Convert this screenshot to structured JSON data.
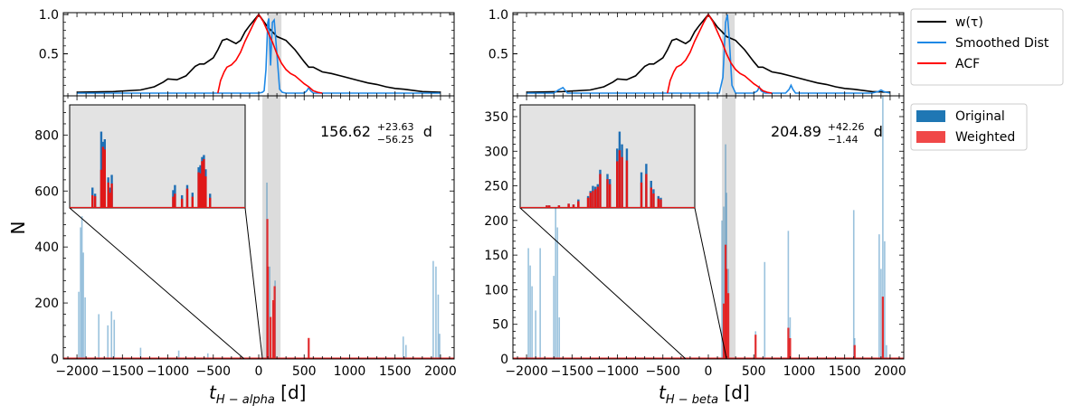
{
  "chart_data": [
    {
      "type": "line",
      "panel": "top-left",
      "ylim": [
        0,
        1.0
      ],
      "yticks": [
        "1.0",
        "0.5"
      ],
      "series": [
        {
          "name": "w(τ)",
          "color": "#000000",
          "x": [
            -2000,
            -1600,
            -1300,
            -1150,
            -1050,
            -1000,
            -900,
            -800,
            -700,
            -650,
            -600,
            -500,
            -450,
            -400,
            -350,
            -300,
            -250,
            -200,
            -150,
            -100,
            -50,
            0,
            50,
            100,
            150,
            200,
            300,
            400,
            500,
            550,
            600,
            700,
            800,
            900,
            1000,
            1100,
            1200,
            1300,
            1400,
            1500,
            1600,
            1800,
            2000
          ],
          "y": [
            0.01,
            0.02,
            0.04,
            0.08,
            0.14,
            0.18,
            0.17,
            0.22,
            0.34,
            0.37,
            0.37,
            0.45,
            0.55,
            0.67,
            0.69,
            0.66,
            0.63,
            0.67,
            0.78,
            0.86,
            0.93,
            1.0,
            0.92,
            0.84,
            0.78,
            0.72,
            0.67,
            0.55,
            0.4,
            0.33,
            0.33,
            0.27,
            0.25,
            0.22,
            0.19,
            0.16,
            0.13,
            0.11,
            0.08,
            0.06,
            0.05,
            0.02,
            0.01
          ]
        },
        {
          "name": "Smoothed Dist",
          "color": "#1e88e5",
          "x": [
            -2000,
            -100,
            0,
            40,
            60,
            80,
            100,
            110,
            130,
            150,
            170,
            200,
            230,
            260,
            300,
            500,
            530,
            550,
            570,
            600,
            2000
          ],
          "y": [
            0,
            0,
            0,
            0.01,
            0.03,
            0.3,
            0.9,
            0.95,
            0.35,
            0.9,
            0.93,
            0.5,
            0.05,
            0.01,
            0,
            0,
            0.03,
            0.07,
            0.03,
            0,
            0
          ],
          "x_right_extra": []
        },
        {
          "name": "ACF",
          "color": "#ff0000",
          "x": [
            -450,
            -420,
            -380,
            -350,
            -300,
            -250,
            -200,
            -150,
            -100,
            -50,
            0,
            50,
            100,
            150,
            200,
            250,
            300,
            350,
            400,
            450,
            500,
            550,
            600,
            650,
            700
          ],
          "y": [
            0,
            0.16,
            0.27,
            0.33,
            0.36,
            0.42,
            0.52,
            0.66,
            0.78,
            0.9,
            1.0,
            0.91,
            0.78,
            0.65,
            0.5,
            0.38,
            0.3,
            0.25,
            0.22,
            0.17,
            0.12,
            0.08,
            0.03,
            0.01,
            0
          ]
        }
      ],
      "shade": [
        100,
        250
      ]
    },
    {
      "type": "bar",
      "panel": "bottom-left",
      "xlabel": "t_{H-alpha} [d]",
      "xlabel_main": "t",
      "xlabel_sub": "H − alpha",
      "xlabel_unit": "[d]",
      "ylabel": "N",
      "xlim": [
        -2150,
        2150
      ],
      "ylim": [
        0,
        940
      ],
      "xticks": [
        -2000,
        -1500,
        -1000,
        -500,
        0,
        500,
        1000,
        1500,
        2000
      ],
      "xticklabels": [
        "−2000",
        "−1500",
        "−1000",
        "−500",
        "0",
        "500",
        "1000",
        "1500",
        "2000"
      ],
      "yticks": [
        0,
        200,
        400,
        600,
        800
      ],
      "annotation": {
        "value": "156.62",
        "sup": "+23.63",
        "sub": "−56.25",
        "unit": "d"
      },
      "shade": [
        40,
        240
      ],
      "original": [
        [
          -1980,
          240
        ],
        [
          -1960,
          470
        ],
        [
          -1945,
          510
        ],
        [
          -1930,
          380
        ],
        [
          -1910,
          220
        ],
        [
          -1760,
          160
        ],
        [
          -1660,
          120
        ],
        [
          -1620,
          170
        ],
        [
          -1590,
          140
        ],
        [
          -1300,
          40
        ],
        [
          -880,
          30
        ],
        [
          -560,
          20
        ],
        [
          90,
          630
        ],
        [
          120,
          330
        ],
        [
          160,
          200
        ],
        [
          180,
          280
        ],
        [
          550,
          70
        ],
        [
          1590,
          80
        ],
        [
          1620,
          50
        ],
        [
          1920,
          350
        ],
        [
          1950,
          330
        ],
        [
          1975,
          230
        ],
        [
          1990,
          90
        ]
      ],
      "weighted": [
        [
          95,
          500
        ],
        [
          100,
          330
        ],
        [
          130,
          150
        ],
        [
          160,
          210
        ],
        [
          175,
          260
        ],
        [
          550,
          75
        ]
      ],
      "inset": {
        "xlim": [
          60,
          260
        ],
        "original": [
          [
            86,
            40
          ],
          [
            89,
            28
          ],
          [
            96,
            150
          ],
          [
            98,
            130
          ],
          [
            100,
            135
          ],
          [
            104,
            60
          ],
          [
            106,
            40
          ],
          [
            108,
            65
          ],
          [
            178,
            35
          ],
          [
            180,
            45
          ],
          [
            188,
            25
          ],
          [
            194,
            45
          ],
          [
            200,
            30
          ],
          [
            207,
            80
          ],
          [
            209,
            84
          ],
          [
            211,
            100
          ],
          [
            212,
            86
          ],
          [
            213,
            104
          ],
          [
            215,
            76
          ],
          [
            220,
            28
          ]
        ],
        "weighted": [
          [
            86,
            25
          ],
          [
            89,
            23
          ],
          [
            96,
            75
          ],
          [
            98,
            120
          ],
          [
            100,
            115
          ],
          [
            104,
            50
          ],
          [
            106,
            30
          ],
          [
            108,
            48
          ],
          [
            178,
            22
          ],
          [
            180,
            28
          ],
          [
            188,
            18
          ],
          [
            194,
            38
          ],
          [
            200,
            22
          ],
          [
            207,
            70
          ],
          [
            209,
            68
          ],
          [
            211,
            92
          ],
          [
            212,
            74
          ],
          [
            213,
            96
          ],
          [
            215,
            62
          ],
          [
            220,
            20
          ]
        ]
      }
    },
    {
      "type": "line",
      "panel": "top-right",
      "ylim": [
        0,
        1.0
      ],
      "yticks": [
        "1.0",
        "0.5"
      ],
      "series": [
        {
          "name": "w(τ)",
          "color": "#000000",
          "x": [
            -2000,
            -1600,
            -1300,
            -1150,
            -1050,
            -1000,
            -900,
            -800,
            -700,
            -650,
            -600,
            -500,
            -450,
            -400,
            -350,
            -300,
            -250,
            -200,
            -150,
            -100,
            -50,
            0,
            50,
            100,
            150,
            200,
            300,
            400,
            500,
            550,
            600,
            700,
            800,
            900,
            1000,
            1100,
            1200,
            1300,
            1400,
            1500,
            1600,
            1800,
            2000
          ],
          "y": [
            0.01,
            0.02,
            0.04,
            0.08,
            0.14,
            0.18,
            0.17,
            0.22,
            0.34,
            0.37,
            0.37,
            0.45,
            0.55,
            0.67,
            0.69,
            0.66,
            0.63,
            0.67,
            0.78,
            0.86,
            0.93,
            1.0,
            0.92,
            0.84,
            0.78,
            0.72,
            0.67,
            0.55,
            0.4,
            0.33,
            0.33,
            0.27,
            0.25,
            0.22,
            0.19,
            0.16,
            0.13,
            0.11,
            0.08,
            0.06,
            0.05,
            0.02,
            0.01
          ]
        },
        {
          "name": "Smoothed Dist",
          "color": "#1e88e5",
          "x": [
            -2000,
            -1700,
            -1650,
            -1600,
            -1550,
            0,
            120,
            160,
            190,
            210,
            230,
            260,
            300,
            500,
            540,
            560,
            580,
            620,
            850,
            890,
            910,
            930,
            960,
            1800,
            1870,
            1900,
            1930,
            2000
          ],
          "y": [
            0,
            0,
            0.04,
            0.07,
            0,
            0,
            0,
            0.2,
            0.9,
            1.0,
            0.7,
            0.1,
            0,
            0,
            0.03,
            0.08,
            0.03,
            0,
            0,
            0.05,
            0.1,
            0.05,
            0,
            0,
            0.02,
            0.04,
            0.02,
            0
          ]
        },
        {
          "name": "ACF",
          "color": "#ff0000",
          "x": [
            -450,
            -420,
            -380,
            -350,
            -300,
            -250,
            -200,
            -150,
            -100,
            -50,
            0,
            50,
            100,
            150,
            200,
            250,
            300,
            350,
            400,
            450,
            500,
            550,
            600,
            650,
            700
          ],
          "y": [
            0,
            0.16,
            0.27,
            0.33,
            0.36,
            0.42,
            0.52,
            0.66,
            0.78,
            0.9,
            1.0,
            0.91,
            0.78,
            0.65,
            0.5,
            0.38,
            0.3,
            0.25,
            0.22,
            0.17,
            0.12,
            0.08,
            0.03,
            0.01,
            0
          ]
        }
      ],
      "shade": [
        150,
        290
      ]
    },
    {
      "type": "bar",
      "panel": "bottom-right",
      "xlabel": "t_{H-beta} [d]",
      "xlabel_main": "t",
      "xlabel_sub": "H − beta",
      "xlabel_unit": "[d]",
      "xlim": [
        -2150,
        2150
      ],
      "ylim": [
        0,
        380
      ],
      "xticks": [
        -2000,
        -1500,
        -1000,
        -500,
        0,
        500,
        1000,
        1500,
        2000
      ],
      "xticklabels": [
        "−2000",
        "−1500",
        "−1000",
        "−500",
        "0",
        "500",
        "1000",
        "1500",
        "2000"
      ],
      "yticks": [
        0,
        50,
        100,
        150,
        200,
        250,
        300,
        350
      ],
      "annotation": {
        "value": "204.89",
        "sup": "+42.26",
        "sub": "−1.44",
        "unit": "d"
      },
      "shade": [
        150,
        300
      ],
      "original": [
        [
          -1980,
          160
        ],
        [
          -1960,
          135
        ],
        [
          -1940,
          105
        ],
        [
          -1900,
          70
        ],
        [
          -1850,
          160
        ],
        [
          -1700,
          120
        ],
        [
          -1680,
          220
        ],
        [
          -1660,
          190
        ],
        [
          -1640,
          60
        ],
        [
          150,
          200
        ],
        [
          170,
          220
        ],
        [
          190,
          310
        ],
        [
          200,
          240
        ],
        [
          220,
          130
        ],
        [
          520,
          40
        ],
        [
          620,
          140
        ],
        [
          880,
          185
        ],
        [
          900,
          60
        ],
        [
          1600,
          215
        ],
        [
          1610,
          30
        ],
        [
          1880,
          180
        ],
        [
          1900,
          130
        ],
        [
          1920,
          380
        ],
        [
          1940,
          170
        ],
        [
          1960,
          20
        ]
      ],
      "weighted": [
        [
          170,
          80
        ],
        [
          190,
          165
        ],
        [
          200,
          130
        ],
        [
          220,
          95
        ],
        [
          520,
          35
        ],
        [
          880,
          45
        ],
        [
          900,
          30
        ],
        [
          1610,
          20
        ],
        [
          1920,
          90
        ]
      ],
      "inset": {
        "xlim": [
          -60,
          300
        ],
        "original": [
          [
            -5,
            3
          ],
          [
            0,
            3
          ],
          [
            20,
            3
          ],
          [
            40,
            5
          ],
          [
            50,
            4
          ],
          [
            60,
            10
          ],
          [
            80,
            14
          ],
          [
            85,
            20
          ],
          [
            95,
            25
          ],
          [
            100,
            28
          ],
          [
            105,
            45
          ],
          [
            120,
            40
          ],
          [
            140,
            70
          ],
          [
            145,
            90
          ],
          [
            150,
            75
          ],
          [
            160,
            70
          ],
          [
            190,
            42
          ],
          [
            200,
            52
          ],
          [
            210,
            32
          ],
          [
            215,
            22
          ],
          [
            225,
            14
          ],
          [
            230,
            12
          ],
          [
            60,
            8
          ],
          [
            90,
            26
          ],
          [
            125,
            34
          ]
        ],
        "weighted": [
          [
            -5,
            3
          ],
          [
            0,
            3
          ],
          [
            20,
            3
          ],
          [
            40,
            5
          ],
          [
            50,
            4
          ],
          [
            60,
            8
          ],
          [
            80,
            12
          ],
          [
            85,
            18
          ],
          [
            95,
            22
          ],
          [
            100,
            25
          ],
          [
            105,
            40
          ],
          [
            120,
            34
          ],
          [
            140,
            55
          ],
          [
            145,
            68
          ],
          [
            150,
            60
          ],
          [
            160,
            56
          ],
          [
            190,
            30
          ],
          [
            200,
            40
          ],
          [
            210,
            24
          ],
          [
            215,
            17
          ],
          [
            225,
            11
          ],
          [
            230,
            10
          ],
          [
            60,
            6
          ],
          [
            90,
            20
          ],
          [
            125,
            28
          ]
        ]
      }
    }
  ],
  "legend_top": {
    "items": [
      "w(τ)",
      "Smoothed Dist",
      "ACF"
    ],
    "colors": [
      "#000000",
      "#1e88e5",
      "#ff0000"
    ]
  },
  "legend_bottom": {
    "items": [
      "Original",
      "Weighted"
    ],
    "colors": [
      "#1f77b4",
      "#f04848"
    ]
  }
}
